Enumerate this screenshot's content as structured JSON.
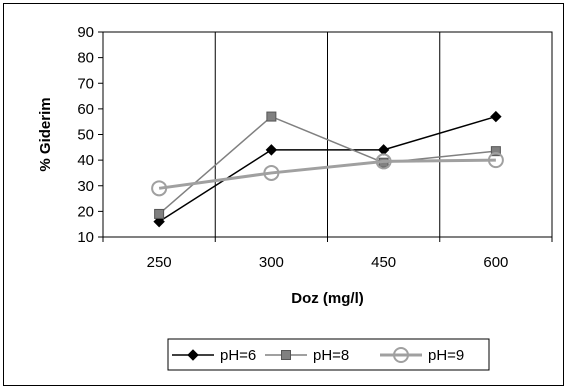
{
  "chart_data": {
    "type": "line",
    "title": "",
    "xlabel": "Doz (mg/l)",
    "ylabel": "% Giderim",
    "categories": [
      "250",
      "300",
      "450",
      "600"
    ],
    "ylim": [
      10,
      90
    ],
    "yticks": [
      10,
      20,
      30,
      40,
      50,
      60,
      70,
      80,
      90
    ],
    "grid": "vertical",
    "legend_position": "bottom",
    "series": [
      {
        "name": "pH=6",
        "values": [
          16,
          44,
          44,
          57
        ],
        "color": "#000000",
        "marker": "diamond"
      },
      {
        "name": "pH=8",
        "values": [
          19,
          57,
          39,
          43.5
        ],
        "color": "#808080",
        "marker": "square"
      },
      {
        "name": "pH=9",
        "values": [
          29,
          35,
          39.5,
          40
        ],
        "color": "#a0a0a0",
        "marker": "circle"
      }
    ]
  }
}
